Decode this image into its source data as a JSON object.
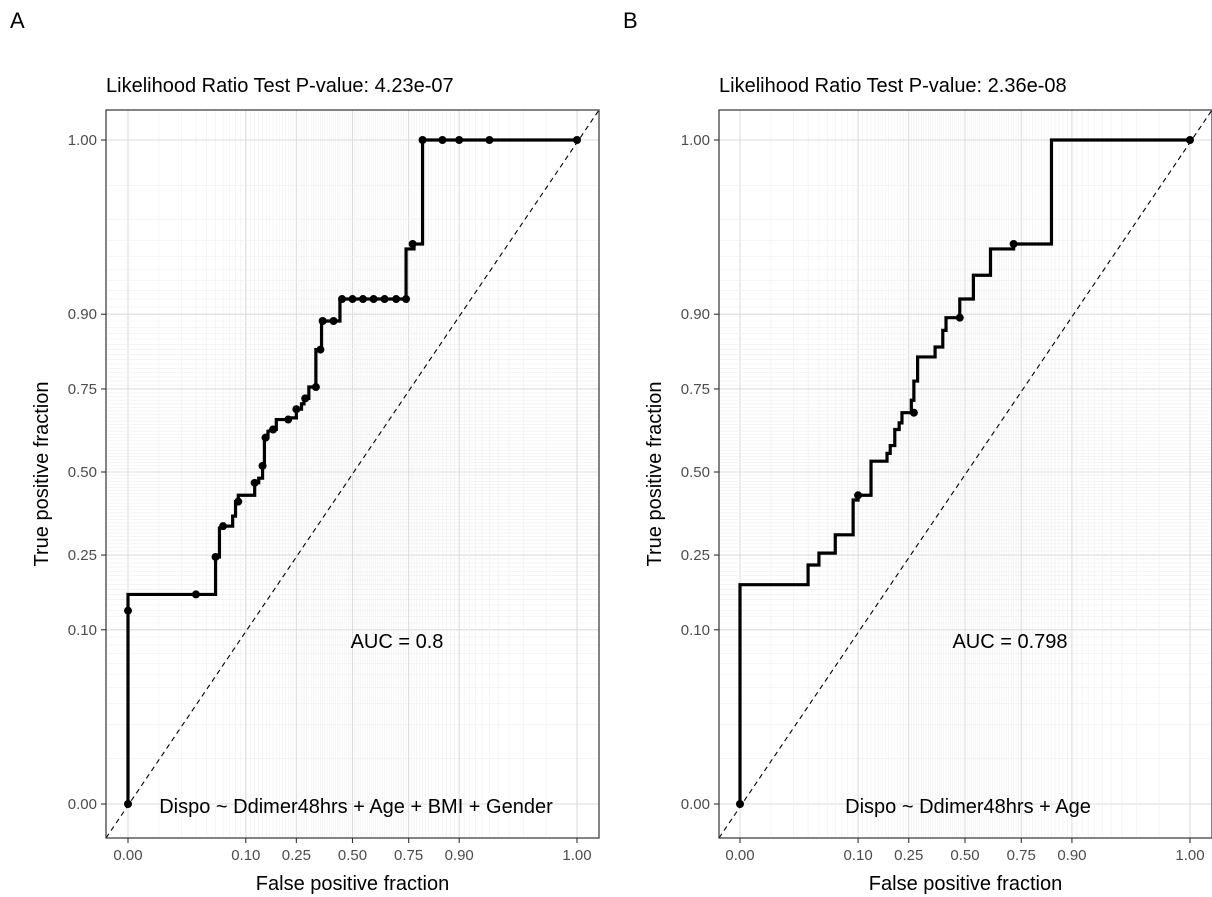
{
  "chart_data": [
    {
      "panel_label": "A",
      "type": "line",
      "title": "Likelihood Ratio Test P-value: 4.23e-07",
      "xlabel": "False positive fraction",
      "ylabel": "True positive fraction",
      "xlim": [
        0,
        1
      ],
      "ylim": [
        0,
        1
      ],
      "scale": "probit",
      "grid": true,
      "x_ticks": [
        "0.00",
        "0.10",
        "0.25",
        "0.50",
        "0.75",
        "0.90",
        "1.00"
      ],
      "y_ticks": [
        "0.00",
        "0.10",
        "0.25",
        "0.50",
        "0.75",
        "0.90",
        "1.00"
      ],
      "annotations": [
        "AUC = 0.8",
        "Dispo ~ Ddimer48hrs + Age + BMI + Gender"
      ],
      "series": [
        {
          "style": "step",
          "points": [
            [
              0,
              0
            ],
            [
              0,
              0.13
            ],
            [
              0,
              0.16
            ],
            [
              0.03,
              0.16
            ],
            [
              0.05,
              0.16
            ],
            [
              0.05,
              0.245
            ],
            [
              0.055,
              0.245
            ],
            [
              0.055,
              0.325
            ],
            [
              0.065,
              0.33
            ],
            [
              0.075,
              0.33
            ],
            [
              0.075,
              0.36
            ],
            [
              0.08,
              0.36
            ],
            [
              0.08,
              0.405
            ],
            [
              0.085,
              0.405
            ],
            [
              0.085,
              0.425
            ],
            [
              0.12,
              0.425
            ],
            [
              0.12,
              0.465
            ],
            [
              0.13,
              0.465
            ],
            [
              0.13,
              0.48
            ],
            [
              0.14,
              0.48
            ],
            [
              0.14,
              0.52
            ],
            [
              0.145,
              0.52
            ],
            [
              0.145,
              0.61
            ],
            [
              0.155,
              0.61
            ],
            [
              0.155,
              0.63
            ],
            [
              0.18,
              0.635
            ],
            [
              0.18,
              0.665
            ],
            [
              0.225,
              0.665
            ],
            [
              0.225,
              0.67
            ],
            [
              0.25,
              0.67
            ],
            [
              0.25,
              0.695
            ],
            [
              0.27,
              0.695
            ],
            [
              0.27,
              0.71
            ],
            [
              0.28,
              0.71
            ],
            [
              0.28,
              0.725
            ],
            [
              0.3,
              0.725
            ],
            [
              0.3,
              0.755
            ],
            [
              0.33,
              0.755
            ],
            [
              0.33,
              0.84
            ],
            [
              0.355,
              0.84
            ],
            [
              0.355,
              0.89
            ],
            [
              0.4,
              0.89
            ],
            [
              0.44,
              0.89
            ],
            [
              0.44,
              0.92
            ],
            [
              0.48,
              0.92
            ],
            [
              0.74,
              0.92
            ],
            [
              0.74,
              0.965
            ],
            [
              0.77,
              0.965
            ],
            [
              0.77,
              0.968
            ],
            [
              0.8,
              0.968
            ],
            [
              0.8,
              1
            ],
            [
              1,
              1
            ]
          ],
          "markers": [
            [
              0,
              0
            ],
            [
              0,
              0.13
            ],
            [
              0.03,
              0.16
            ],
            [
              0.05,
              0.245
            ],
            [
              0.06,
              0.33
            ],
            [
              0.085,
              0.405
            ],
            [
              0.12,
              0.465
            ],
            [
              0.14,
              0.52
            ],
            [
              0.148,
              0.61
            ],
            [
              0.17,
              0.635
            ],
            [
              0.22,
              0.665
            ],
            [
              0.25,
              0.695
            ],
            [
              0.285,
              0.725
            ],
            [
              0.33,
              0.755
            ],
            [
              0.35,
              0.84
            ],
            [
              0.36,
              0.89
            ],
            [
              0.41,
              0.89
            ],
            [
              0.45,
              0.92
            ],
            [
              0.5,
              0.92
            ],
            [
              0.55,
              0.92
            ],
            [
              0.6,
              0.92
            ],
            [
              0.65,
              0.92
            ],
            [
              0.7,
              0.92
            ],
            [
              0.74,
              0.92
            ],
            [
              0.765,
              0.968
            ],
            [
              0.8,
              1
            ],
            [
              0.86,
              1
            ],
            [
              0.9,
              1
            ],
            [
              0.95,
              1
            ],
            [
              1,
              1
            ]
          ]
        }
      ]
    },
    {
      "panel_label": "B",
      "type": "line",
      "title": "Likelihood Ratio Test P-value: 2.36e-08",
      "xlabel": "False positive fraction",
      "ylabel": "True positive fraction",
      "xlim": [
        0,
        1
      ],
      "ylim": [
        0,
        1
      ],
      "scale": "probit",
      "grid": true,
      "x_ticks": [
        "0.00",
        "0.10",
        "0.25",
        "0.50",
        "0.75",
        "0.90",
        "1.00"
      ],
      "y_ticks": [
        "0.00",
        "0.10",
        "0.25",
        "0.50",
        "0.75",
        "0.90",
        "1.00"
      ],
      "annotations": [
        "AUC = 0.798",
        "Dispo ~ Ddimer48hrs + Age"
      ],
      "series": [
        {
          "style": "step",
          "points": [
            [
              0,
              0
            ],
            [
              0,
              0.18
            ],
            [
              0.03,
              0.18
            ],
            [
              0.03,
              0.225
            ],
            [
              0.04,
              0.225
            ],
            [
              0.04,
              0.255
            ],
            [
              0.06,
              0.255
            ],
            [
              0.06,
              0.305
            ],
            [
              0.09,
              0.305
            ],
            [
              0.09,
              0.41
            ],
            [
              0.1,
              0.41
            ],
            [
              0.1,
              0.425
            ],
            [
              0.13,
              0.425
            ],
            [
              0.13,
              0.535
            ],
            [
              0.175,
              0.535
            ],
            [
              0.175,
              0.56
            ],
            [
              0.185,
              0.56
            ],
            [
              0.185,
              0.585
            ],
            [
              0.2,
              0.585
            ],
            [
              0.2,
              0.635
            ],
            [
              0.215,
              0.635
            ],
            [
              0.215,
              0.655
            ],
            [
              0.225,
              0.655
            ],
            [
              0.225,
              0.685
            ],
            [
              0.26,
              0.685
            ],
            [
              0.26,
              0.72
            ],
            [
              0.27,
              0.72
            ],
            [
              0.27,
              0.77
            ],
            [
              0.285,
              0.77
            ],
            [
              0.285,
              0.825
            ],
            [
              0.36,
              0.825
            ],
            [
              0.36,
              0.845
            ],
            [
              0.395,
              0.845
            ],
            [
              0.395,
              0.875
            ],
            [
              0.41,
              0.875
            ],
            [
              0.41,
              0.895
            ],
            [
              0.475,
              0.895
            ],
            [
              0.475,
              0.92
            ],
            [
              0.54,
              0.92
            ],
            [
              0.54,
              0.945
            ],
            [
              0.62,
              0.945
            ],
            [
              0.62,
              0.965
            ],
            [
              0.72,
              0.965
            ],
            [
              0.72,
              0.968
            ],
            [
              0.85,
              0.968
            ],
            [
              0.85,
              1
            ],
            [
              1,
              1
            ]
          ],
          "markers": [
            [
              0,
              0
            ],
            [
              0.1,
              0.425
            ],
            [
              0.27,
              0.685
            ],
            [
              0.475,
              0.895
            ],
            [
              0.72,
              0.968
            ],
            [
              1,
              1
            ]
          ]
        }
      ]
    }
  ]
}
